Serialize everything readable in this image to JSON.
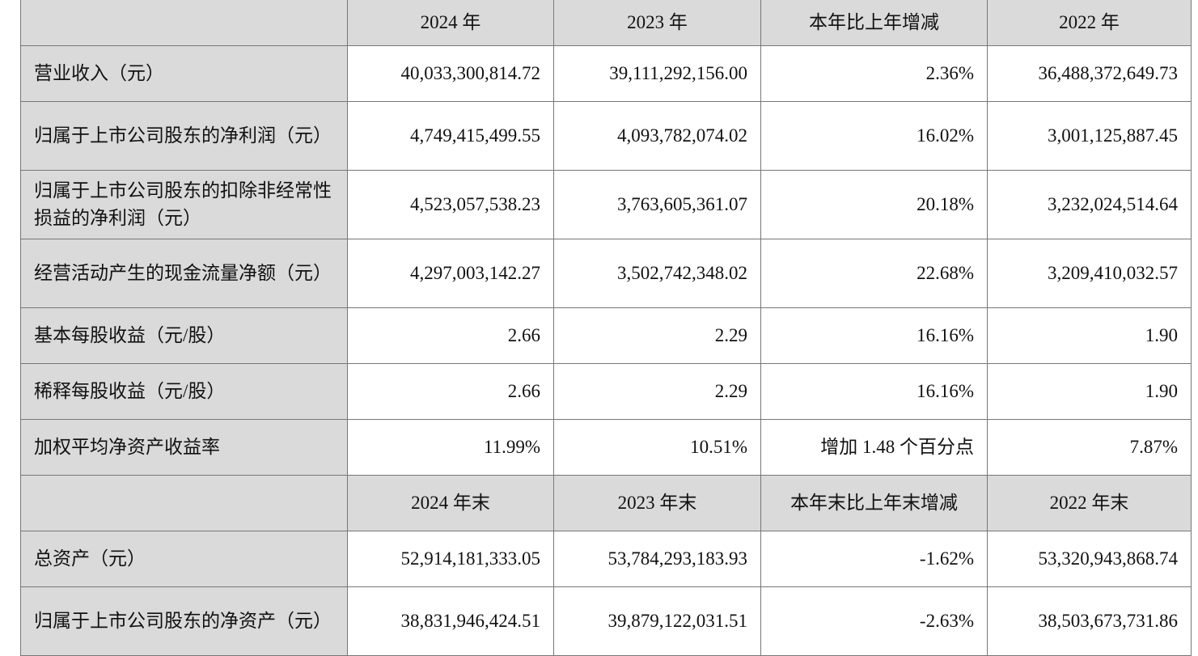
{
  "header": [
    "",
    "2024 年",
    "2023 年",
    "本年比上年增减",
    "2022 年"
  ],
  "rows": [
    {
      "label": "营业收入（元）",
      "values": [
        "40,033,300,814.72",
        "39,111,292,156.00",
        "2.36%",
        "36,488,372,649.73"
      ]
    },
    {
      "label": "归属于上市公司股东的净利润（元）",
      "values": [
        "4,749,415,499.55",
        "4,093,782,074.02",
        "16.02%",
        "3,001,125,887.45"
      ]
    },
    {
      "label": "归属于上市公司股东的扣除非经常性损益的净利润（元）",
      "values": [
        "4,523,057,538.23",
        "3,763,605,361.07",
        "20.18%",
        "3,232,024,514.64"
      ]
    },
    {
      "label": "经营活动产生的现金流量净额（元）",
      "values": [
        "4,297,003,142.27",
        "3,502,742,348.02",
        "22.68%",
        "3,209,410,032.57"
      ]
    },
    {
      "label": "基本每股收益（元/股）",
      "values": [
        "2.66",
        "2.29",
        "16.16%",
        "1.90"
      ]
    },
    {
      "label": "稀释每股收益（元/股）",
      "values": [
        "2.66",
        "2.29",
        "16.16%",
        "1.90"
      ]
    },
    {
      "label": "加权平均净资产收益率",
      "values": [
        "11.99%",
        "10.51%",
        "增加 1.48 个百分点",
        "7.87%"
      ]
    }
  ],
  "header2": [
    "",
    "2024 年末",
    "2023 年末",
    "本年末比上年末增减",
    "2022 年末"
  ],
  "rows2": [
    {
      "label": "总资产（元）",
      "values": [
        "52,914,181,333.05",
        "53,784,293,183.93",
        "-1.62%",
        "53,320,943,868.74"
      ]
    },
    {
      "label": "归属于上市公司股东的净资产（元）",
      "values": [
        "38,831,946,424.51",
        "39,879,122,031.51",
        "-2.63%",
        "38,503,673,731.86"
      ]
    }
  ]
}
